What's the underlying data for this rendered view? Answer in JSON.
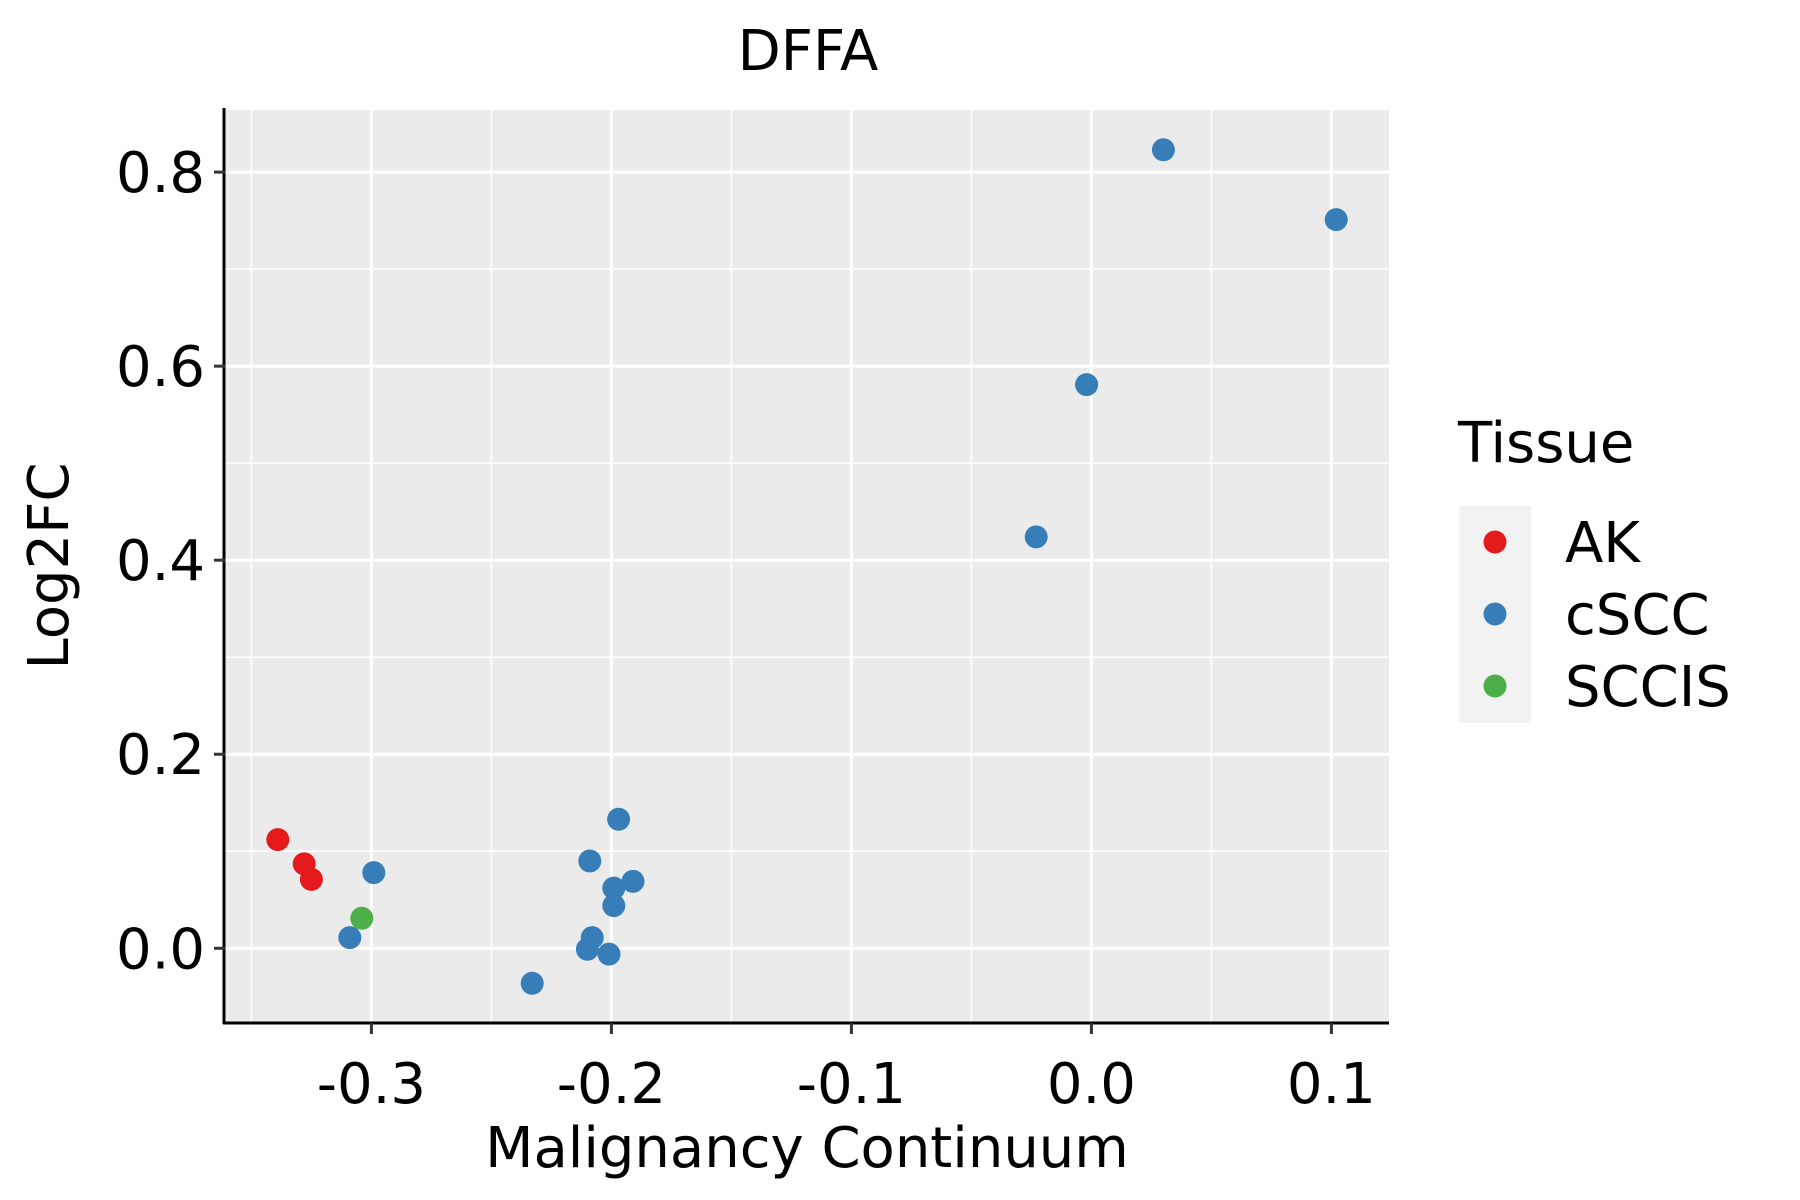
{
  "chart_data": {
    "type": "scatter",
    "title": "DFFA",
    "xlabel": "Malignancy Continuum",
    "ylabel": "Log2FC",
    "xlim": [
      -0.361,
      0.124
    ],
    "ylim": [
      -0.077,
      0.864
    ],
    "x_ticks": [
      -0.3,
      -0.2,
      -0.1,
      0.0,
      0.1
    ],
    "x_tick_labels": [
      "-0.3",
      "-0.2",
      "-0.1",
      "0.0",
      "0.1"
    ],
    "y_ticks": [
      0.0,
      0.2,
      0.4,
      0.6,
      0.8
    ],
    "y_tick_labels": [
      "0.0",
      "0.2",
      "0.4",
      "0.6",
      "0.8"
    ],
    "grid": true,
    "legend": {
      "title": "Tissue",
      "placement": "right"
    },
    "series": [
      {
        "name": "AK",
        "color": "#E41A1C",
        "points": [
          [
            -0.339,
            0.112
          ],
          [
            -0.328,
            0.087
          ],
          [
            -0.325,
            0.071
          ]
        ]
      },
      {
        "name": "cSCC",
        "color": "#377EB8",
        "points": [
          [
            -0.309,
            0.011
          ],
          [
            -0.299,
            0.078
          ],
          [
            -0.233,
            -0.036
          ],
          [
            -0.209,
            0.09
          ],
          [
            -0.197,
            0.133
          ],
          [
            -0.191,
            0.069
          ],
          [
            -0.199,
            0.062
          ],
          [
            -0.199,
            0.044
          ],
          [
            -0.208,
            0.011
          ],
          [
            -0.21,
            -0.001
          ],
          [
            -0.201,
            -0.006
          ],
          [
            -0.023,
            0.424
          ],
          [
            -0.002,
            0.581
          ],
          [
            0.03,
            0.823
          ],
          [
            0.102,
            0.751
          ]
        ]
      },
      {
        "name": "SCCIS",
        "color": "#4DAF4A",
        "points": [
          [
            -0.304,
            0.031
          ]
        ]
      }
    ]
  }
}
